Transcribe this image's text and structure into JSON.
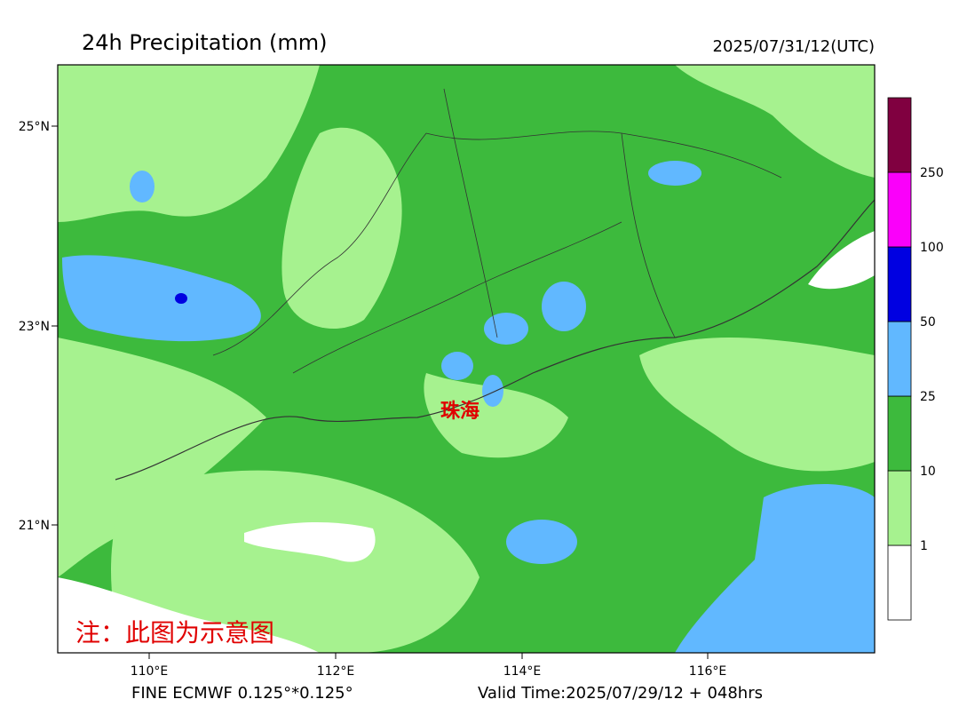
{
  "header": {
    "title": "24h Precipitation (mm)",
    "time": "2025/07/31/12(UTC)"
  },
  "map": {
    "lat_labels": [
      "25°N",
      "23°N",
      "21°N"
    ],
    "lon_labels": [
      "110°E",
      "112°E",
      "114°E",
      "116°E"
    ],
    "city": "珠海",
    "note": "注：此图为示意图"
  },
  "colorbar": {
    "levels": [
      1,
      10,
      25,
      50,
      100,
      250
    ],
    "colors": [
      "#ffffff",
      "#a6f28f",
      "#3dba3d",
      "#61b8ff",
      "#0000e1",
      "#fa00fa",
      "#800040"
    ]
  },
  "footer": {
    "model": "FINE ECMWF 0.125°*0.125°",
    "valid": "Valid Time:2025/07/29/12 + 048hrs"
  }
}
